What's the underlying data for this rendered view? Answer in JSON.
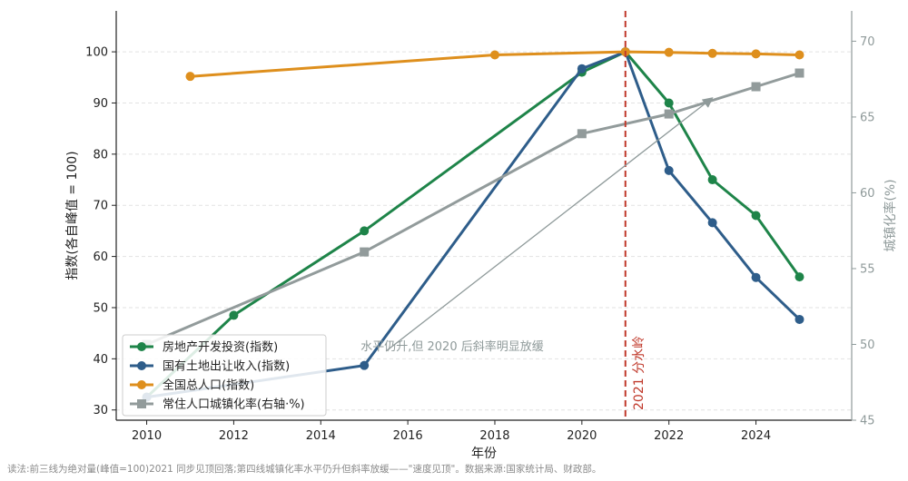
{
  "chart_data": {
    "type": "line",
    "x": [
      2010,
      2011,
      2012,
      2015,
      2018,
      2020,
      2021,
      2022,
      2023,
      2024,
      2025
    ],
    "xlabel": "年份",
    "ylabel": "指数(各自峰值 = 100)",
    "y2label": "城镇化率(%)",
    "xlim": [
      2009.3,
      2026.2
    ],
    "ylim": [
      28,
      108
    ],
    "y2lim": [
      45,
      72
    ],
    "xticks": [
      2010,
      2012,
      2014,
      2016,
      2018,
      2020,
      2022,
      2024
    ],
    "yticks": [
      30,
      40,
      50,
      60,
      70,
      80,
      90,
      100
    ],
    "y2ticks": [
      45,
      50,
      55,
      60,
      65,
      70
    ],
    "grid": true,
    "legend_position": "lower-left",
    "series": [
      {
        "name": "房地产开发投资(指数)",
        "color": "#1e8449",
        "marker": "circle",
        "axis": "left",
        "points": [
          [
            2010,
            32.5
          ],
          [
            2012,
            48.5
          ],
          [
            2015,
            65
          ],
          [
            2020,
            96
          ],
          [
            2021,
            100
          ],
          [
            2022,
            90
          ],
          [
            2023,
            75
          ],
          [
            2024,
            68
          ],
          [
            2025,
            56
          ]
        ]
      },
      {
        "name": "国有土地出让收入(指数)",
        "color": "#2e5d8a",
        "marker": "circle",
        "axis": "left",
        "points": [
          [
            2010,
            32.5
          ],
          [
            2015,
            38.7
          ],
          [
            2020,
            96.7
          ],
          [
            2021,
            100
          ],
          [
            2022,
            76.8
          ],
          [
            2023,
            66.6
          ],
          [
            2024,
            55.9
          ],
          [
            2025,
            47.7
          ]
        ]
      },
      {
        "name": "全国总人口(指数)",
        "color": "#de8f1d",
        "marker": "circle",
        "axis": "left",
        "points": [
          [
            2011,
            95.2
          ],
          [
            2018,
            99.4
          ],
          [
            2021,
            100
          ],
          [
            2022,
            99.9
          ],
          [
            2023,
            99.7
          ],
          [
            2024,
            99.6
          ],
          [
            2025,
            99.4
          ]
        ]
      },
      {
        "name": "常住人口城镇化率(右轴·%)",
        "color": "#929b9b",
        "marker": "square",
        "axis": "right",
        "points": [
          [
            2010,
            50.0
          ],
          [
            2015,
            56.1
          ],
          [
            2020,
            63.9
          ],
          [
            2022,
            65.2
          ],
          [
            2024,
            67.0
          ],
          [
            2025,
            67.9
          ]
        ]
      }
    ],
    "divider": {
      "x": 2021,
      "label": "2021 分水岭",
      "color": "#c0392b"
    },
    "annotation": {
      "text": "水平仍升,但 2020 后斜率明显放缓",
      "anchor": [
        2015.5,
        41.5
      ],
      "target": [
        2023,
        91
      ]
    }
  },
  "footnote": "读法:前三线为绝对量(峰值=100)2021 同步见顶回落;第四线城镇化率水平仍升但斜率放缓——\"速度见顶\"。数据来源:国家统计局、财政部。"
}
